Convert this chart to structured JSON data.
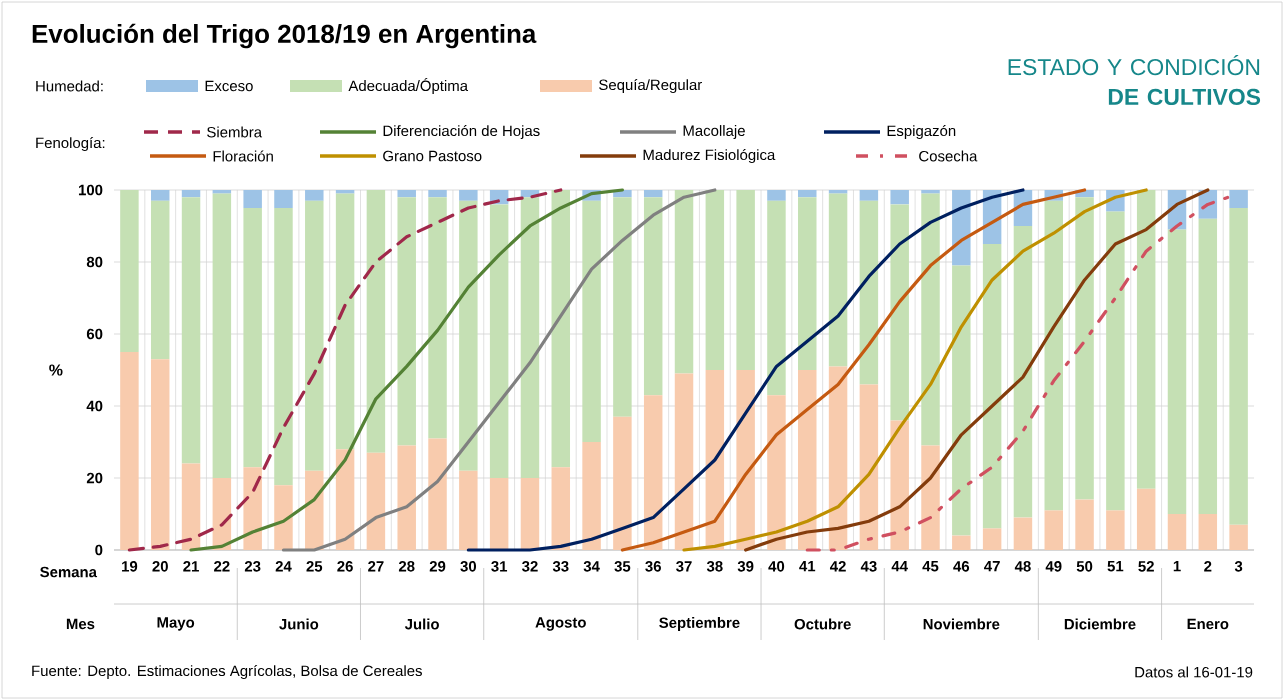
{
  "chart_data": {
    "type": "bar",
    "stacked": true,
    "title": "Evolución del Trigo 2018/19 en Argentina",
    "subtitle": "ESTADO Y CONDICIÓN **DE CULTIVOS**",
    "xlabel": "Semana",
    "ylabel": "%",
    "categories": [
      "19",
      "20",
      "21",
      "22",
      "23",
      "24",
      "25",
      "26",
      "27",
      "28",
      "29",
      "30",
      "31",
      "32",
      "33",
      "34",
      "35",
      "36",
      "37",
      "38",
      "39",
      "40",
      "41",
      "42",
      "43",
      "44",
      "45",
      "46",
      "47",
      "48",
      "49",
      "50",
      "51",
      "52",
      "1",
      "2",
      "3"
    ],
    "ylim": [
      0,
      100
    ],
    "yticks": [
      0,
      20,
      40,
      60,
      80,
      100
    ],
    "grid": true,
    "legend": "top",
    "series": [
      {
        "name": "Sequía/Regular",
        "color": "#f8cbad",
        "values": [
          55,
          53,
          24,
          20,
          23,
          18,
          22,
          28,
          27,
          29,
          31,
          22,
          20,
          20,
          23,
          30,
          37,
          43,
          49,
          50,
          50,
          43,
          50,
          51,
          46,
          36,
          29,
          4,
          6,
          9,
          11,
          14,
          11,
          17,
          10,
          10,
          7
        ]
      },
      {
        "name": "Adecuada/Óptima",
        "color": "#c5e0b4",
        "values": [
          45,
          44,
          74,
          79,
          72,
          77,
          75,
          71,
          73,
          69,
          67,
          75,
          76,
          78,
          77,
          67,
          61,
          55,
          51,
          50,
          50,
          54,
          48,
          48,
          51,
          60,
          70,
          75,
          79,
          81,
          86,
          84,
          83,
          83,
          79,
          82,
          88
        ]
      },
      {
        "name": "Exceso",
        "color": "#9dc3e6",
        "values": [
          0,
          3,
          2,
          1,
          5,
          5,
          3,
          1,
          0,
          2,
          2,
          3,
          4,
          2,
          0,
          3,
          2,
          2,
          0,
          0,
          0,
          3,
          2,
          1,
          3,
          4,
          1,
          21,
          15,
          10,
          3,
          2,
          6,
          0,
          11,
          8,
          5
        ]
      },
      {
        "name": "Siembra",
        "type": "line",
        "line_style": "dashed",
        "color": "#a0284a",
        "values": [
          0,
          1,
          3,
          7,
          16,
          34,
          49,
          68,
          80,
          87,
          91,
          95,
          97,
          98,
          100,
          null,
          null,
          null,
          null,
          null,
          null,
          null,
          null,
          null,
          null,
          null,
          null,
          null,
          null,
          null,
          null,
          null,
          null,
          null,
          null,
          null,
          null
        ]
      },
      {
        "name": "Diferenciación de Hojas",
        "type": "line",
        "line_style": "solid",
        "color": "#548235",
        "values": [
          null,
          null,
          0,
          1,
          5,
          8,
          14,
          25,
          42,
          51,
          61,
          73,
          82,
          90,
          95,
          99,
          100,
          null,
          null,
          null,
          null,
          null,
          null,
          null,
          null,
          null,
          null,
          null,
          null,
          null,
          null,
          null,
          null,
          null,
          null,
          null,
          null
        ]
      },
      {
        "name": "Macollaje",
        "type": "line",
        "line_style": "solid",
        "color": "#808080",
        "values": [
          null,
          null,
          null,
          null,
          null,
          0,
          0,
          3,
          9,
          12,
          19,
          30,
          41,
          52,
          65,
          78,
          86,
          93,
          98,
          100,
          null,
          null,
          null,
          null,
          null,
          null,
          null,
          null,
          null,
          null,
          null,
          null,
          null,
          null,
          null,
          null,
          null
        ]
      },
      {
        "name": "Espigazón",
        "type": "line",
        "line_style": "solid",
        "color": "#002060",
        "values": [
          null,
          null,
          null,
          null,
          null,
          null,
          null,
          null,
          null,
          null,
          null,
          0,
          0,
          0,
          1,
          3,
          6,
          9,
          17,
          25,
          38,
          51,
          58,
          65,
          76,
          85,
          91,
          95,
          98,
          100,
          null,
          null,
          null,
          null,
          null,
          null,
          null
        ]
      },
      {
        "name": "Floración",
        "type": "line",
        "line_style": "solid",
        "color": "#c55a11",
        "values": [
          null,
          null,
          null,
          null,
          null,
          null,
          null,
          null,
          null,
          null,
          null,
          null,
          null,
          null,
          null,
          null,
          0,
          2,
          5,
          8,
          21,
          32,
          39,
          46,
          57,
          69,
          79,
          86,
          91,
          96,
          98,
          100,
          null,
          null,
          null,
          null,
          null
        ]
      },
      {
        "name": "Grano Pastoso",
        "type": "line",
        "line_style": "solid",
        "color": "#bf9000",
        "values": [
          null,
          null,
          null,
          null,
          null,
          null,
          null,
          null,
          null,
          null,
          null,
          null,
          null,
          null,
          null,
          null,
          null,
          null,
          0,
          1,
          3,
          5,
          8,
          12,
          21,
          34,
          46,
          62,
          75,
          83,
          88,
          94,
          98,
          100,
          null,
          null,
          null
        ]
      },
      {
        "name": "Madurez Fisiológica",
        "type": "line",
        "line_style": "solid",
        "color": "#843c0c",
        "values": [
          null,
          null,
          null,
          null,
          null,
          null,
          null,
          null,
          null,
          null,
          null,
          null,
          null,
          null,
          null,
          null,
          null,
          null,
          null,
          null,
          0,
          3,
          5,
          6,
          8,
          12,
          20,
          32,
          40,
          48,
          62,
          75,
          85,
          89,
          96,
          100,
          null
        ]
      },
      {
        "name": "Cosecha",
        "type": "line",
        "line_style": "dashdot",
        "color": "#d05060",
        "values": [
          null,
          null,
          null,
          null,
          null,
          null,
          null,
          null,
          null,
          null,
          null,
          null,
          null,
          null,
          null,
          null,
          null,
          null,
          null,
          null,
          null,
          null,
          0,
          0,
          3,
          5,
          9,
          17,
          23,
          33,
          47,
          58,
          70,
          83,
          90,
          96,
          99
        ]
      }
    ],
    "annotations": [
      "Humedad:",
      "Fenología:",
      "Mes",
      "Mayo",
      "Junio",
      "Julio",
      "Agosto",
      "Septiembre",
      "Octubre",
      "Noviembre",
      "Diciembre",
      "Enero",
      "Fuente: Depto. Estimaciones Agrícolas, Bolsa de Cereales",
      "Datos al 16-01-19"
    ]
  }
}
